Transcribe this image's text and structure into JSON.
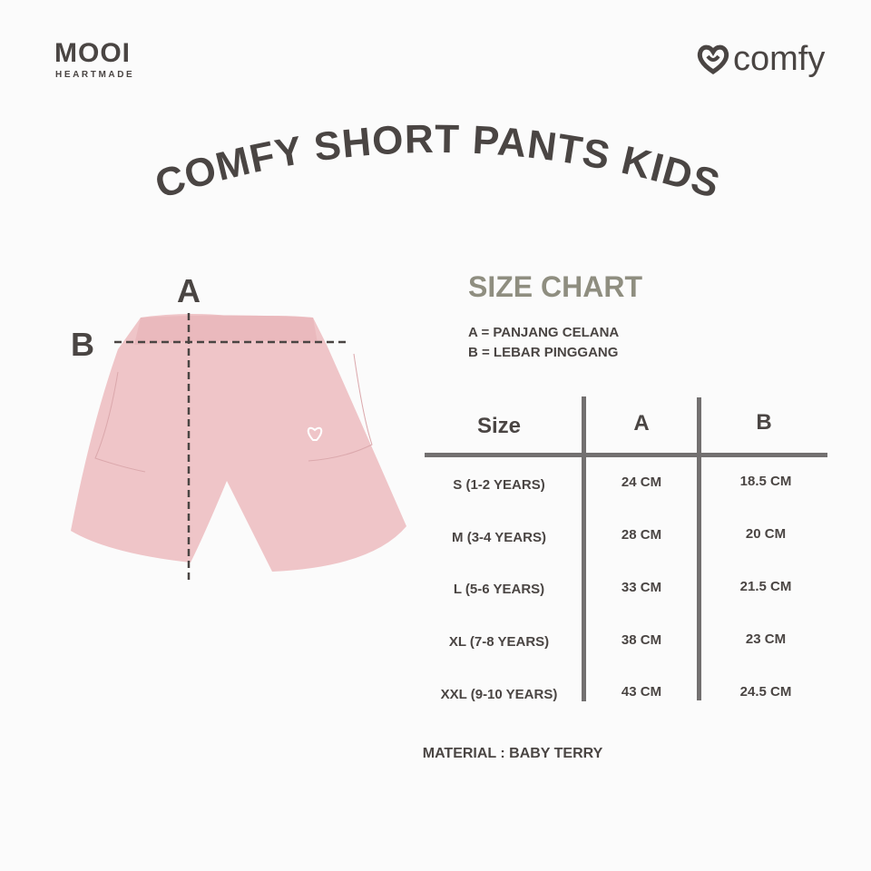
{
  "brand": {
    "name": "MOOI",
    "tagline": "HEARTMADE"
  },
  "logo": {
    "text": "comfy",
    "icon": "heart-icon"
  },
  "title": "COMFY SHORT PANTS KIDS",
  "diagram": {
    "label_a": "A",
    "label_b": "B",
    "garment_color": "#efc5c8"
  },
  "size_chart": {
    "heading": "SIZE CHART",
    "legend": [
      "A = PANJANG CELANA",
      "B = LEBAR PINGGANG"
    ],
    "columns": [
      "Size",
      "A",
      "B"
    ],
    "rows": [
      [
        "S (1-2 YEARS)",
        "24 CM",
        "18.5 CM"
      ],
      [
        "M (3-4 YEARS)",
        "28 CM",
        "20 CM"
      ],
      [
        "L (5-6 YEARS)",
        "33 CM",
        "21.5 CM"
      ],
      [
        "XL (7-8 YEARS)",
        "38 CM",
        "23 CM"
      ],
      [
        "XXL (9-10 YEARS)",
        "43 CM",
        "24.5 CM"
      ]
    ]
  },
  "material": "MATERIAL : BABY TERRY",
  "colors": {
    "text": "#4a4543",
    "heading": "#8f8e80",
    "lines": "#737070",
    "background": "#fbfbfb"
  }
}
